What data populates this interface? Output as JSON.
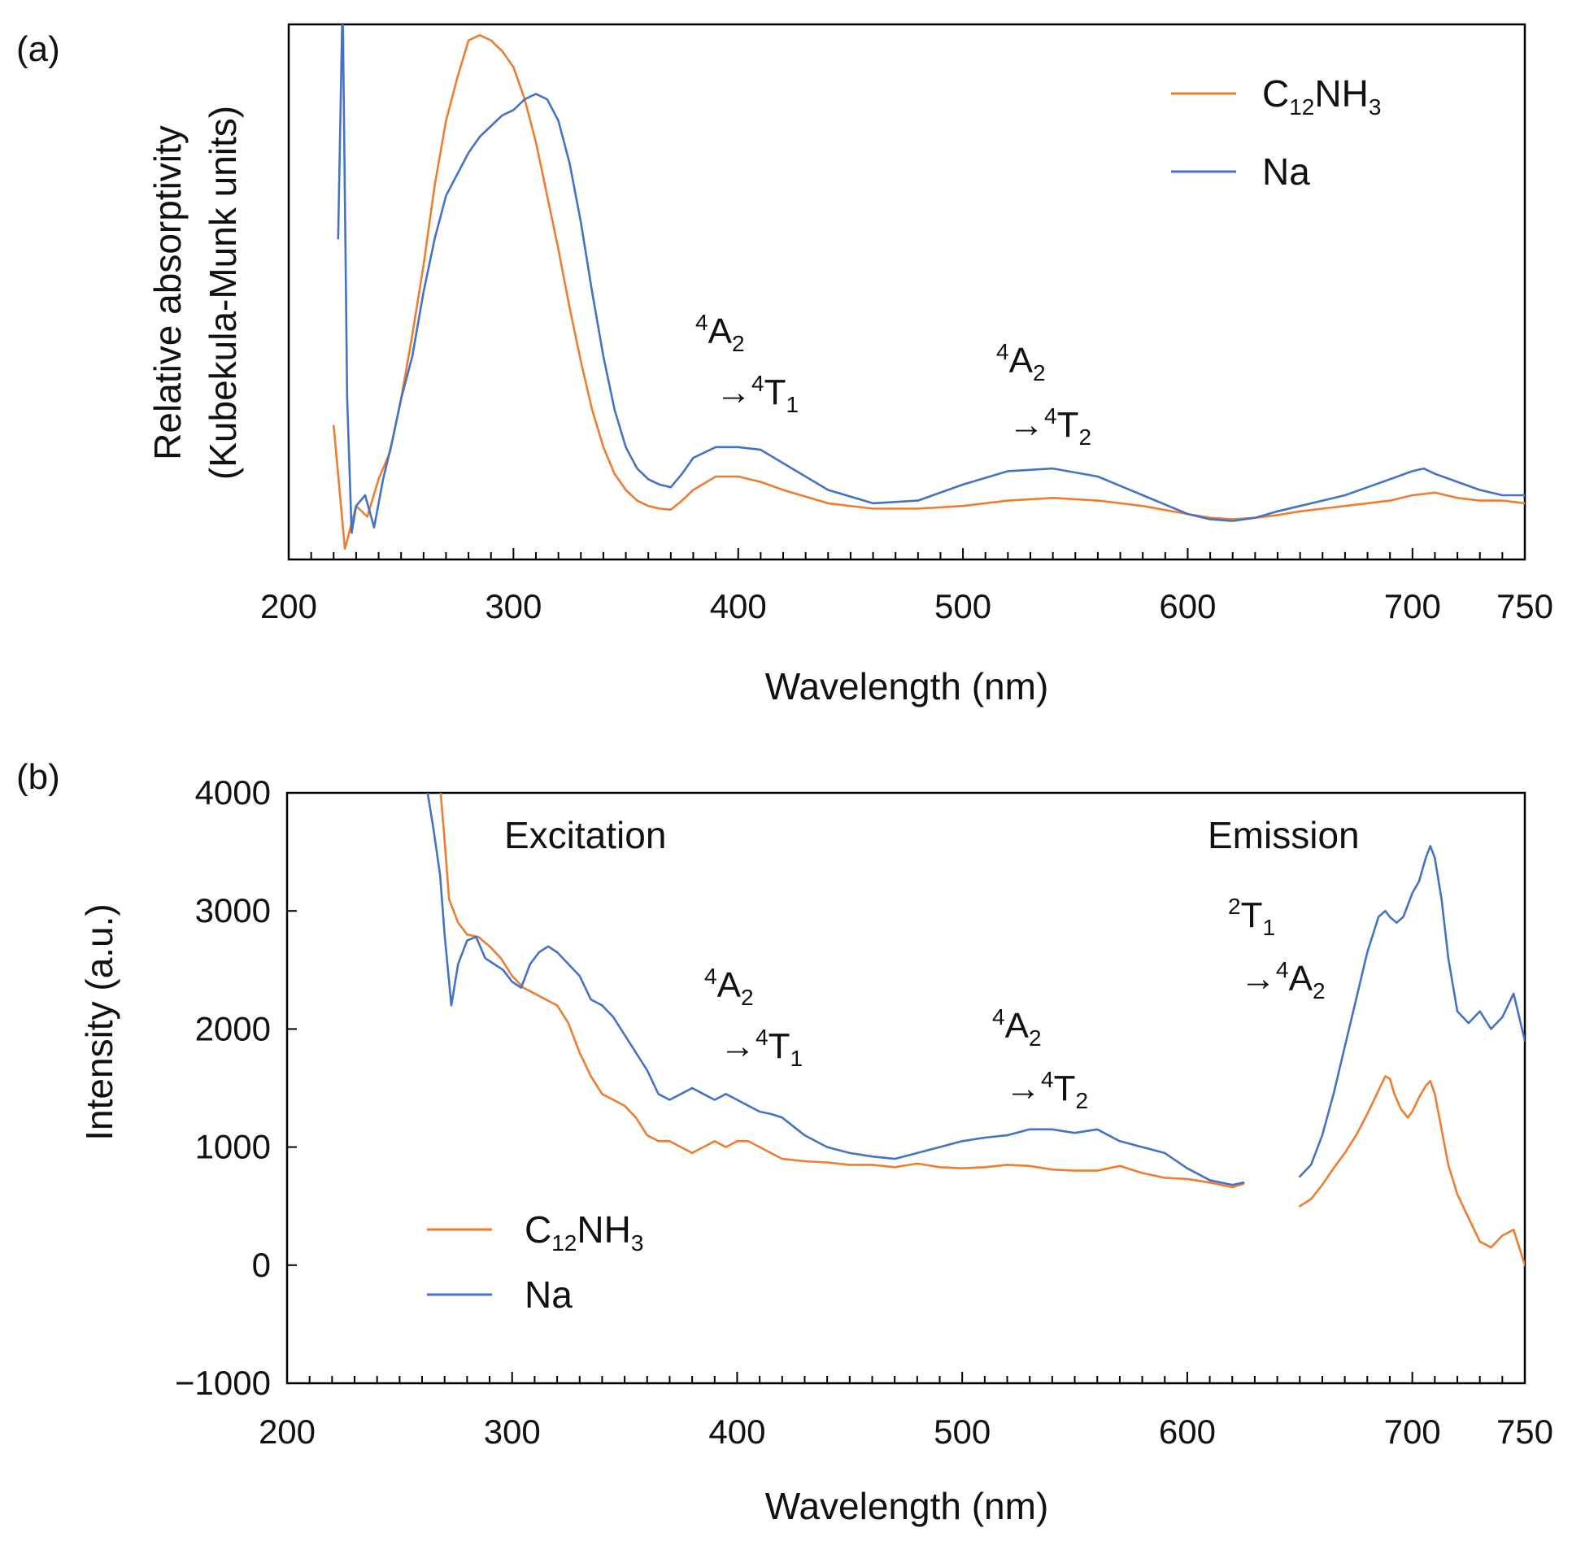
{
  "colors": {
    "c12nh3": "#ED7D31",
    "na": "#4472C4"
  },
  "chart_data": [
    {
      "panel": "(a)",
      "type": "line",
      "xlabel": "Wavelength (nm)",
      "ylabel_line1": "Relative absorptivity",
      "ylabel_line2": "(Kubekula-Munk units)",
      "xlim": [
        200,
        750
      ],
      "ylim": [
        0,
        1
      ],
      "x_ticks": [
        200,
        300,
        400,
        500,
        600,
        700,
        750
      ],
      "x_tick_labels": [
        "200",
        "300",
        "400",
        "500",
        "600",
        "700",
        "750"
      ],
      "y_tick_labels": [],
      "legend": [
        "C12NH3",
        "Na"
      ],
      "legend_position": "top-right",
      "annotations": [
        {
          "line1": "4A2",
          "line2": "→4T1",
          "x": 400
        },
        {
          "line1": "4A2",
          "line2": "→4T2",
          "x": 530
        }
      ],
      "series": [
        {
          "name": "C12NH3",
          "x": [
            220,
            225,
            230,
            235,
            240,
            245,
            250,
            255,
            260,
            265,
            270,
            275,
            280,
            285,
            290,
            295,
            300,
            305,
            310,
            315,
            320,
            325,
            330,
            335,
            340,
            345,
            350,
            355,
            360,
            365,
            370,
            375,
            380,
            390,
            400,
            410,
            420,
            440,
            460,
            480,
            500,
            520,
            540,
            560,
            580,
            600,
            610,
            620,
            630,
            640,
            650,
            660,
            670,
            680,
            690,
            700,
            710,
            720,
            730,
            740,
            750
          ],
          "y": [
            0.25,
            0.02,
            0.1,
            0.08,
            0.15,
            0.2,
            0.3,
            0.42,
            0.55,
            0.7,
            0.82,
            0.9,
            0.97,
            0.98,
            0.97,
            0.95,
            0.92,
            0.86,
            0.78,
            0.68,
            0.58,
            0.47,
            0.37,
            0.28,
            0.21,
            0.16,
            0.13,
            0.11,
            0.1,
            0.095,
            0.093,
            0.11,
            0.13,
            0.155,
            0.155,
            0.145,
            0.13,
            0.105,
            0.095,
            0.095,
            0.1,
            0.11,
            0.115,
            0.11,
            0.1,
            0.085,
            0.078,
            0.075,
            0.078,
            0.083,
            0.09,
            0.095,
            0.1,
            0.105,
            0.11,
            0.12,
            0.125,
            0.115,
            0.11,
            0.11,
            0.105
          ]
        },
        {
          "name": "Na",
          "x": [
            222,
            224,
            226,
            228,
            230,
            234,
            238,
            242,
            246,
            250,
            255,
            260,
            265,
            270,
            275,
            280,
            285,
            290,
            295,
            300,
            305,
            310,
            315,
            320,
            325,
            330,
            335,
            340,
            345,
            350,
            355,
            360,
            365,
            370,
            375,
            380,
            390,
            400,
            410,
            420,
            440,
            460,
            480,
            500,
            520,
            540,
            560,
            580,
            600,
            610,
            620,
            630,
            640,
            650,
            660,
            670,
            680,
            690,
            700,
            705,
            710,
            720,
            730,
            740,
            750
          ],
          "y": [
            0.6,
            1.05,
            0.3,
            0.05,
            0.1,
            0.12,
            0.06,
            0.15,
            0.22,
            0.3,
            0.38,
            0.5,
            0.6,
            0.68,
            0.72,
            0.76,
            0.79,
            0.81,
            0.83,
            0.84,
            0.86,
            0.87,
            0.86,
            0.82,
            0.74,
            0.63,
            0.5,
            0.38,
            0.28,
            0.21,
            0.17,
            0.15,
            0.14,
            0.135,
            0.16,
            0.19,
            0.21,
            0.21,
            0.205,
            0.18,
            0.13,
            0.105,
            0.11,
            0.14,
            0.165,
            0.17,
            0.155,
            0.12,
            0.085,
            0.075,
            0.072,
            0.078,
            0.09,
            0.1,
            0.11,
            0.12,
            0.135,
            0.15,
            0.165,
            0.17,
            0.16,
            0.145,
            0.13,
            0.12,
            0.12
          ]
        }
      ]
    },
    {
      "panel": "(b)",
      "type": "line",
      "xlabel": "Wavelength (nm)",
      "ylabel": "Intensity (a.u.)",
      "xlim": [
        200,
        750
      ],
      "ylim": [
        -1000,
        4000
      ],
      "x_ticks": [
        200,
        300,
        400,
        500,
        600,
        700,
        750
      ],
      "x_tick_labels": [
        "200",
        "300",
        "400",
        "500",
        "600",
        "700",
        "750"
      ],
      "y_ticks": [
        4000,
        3000,
        2000,
        1000,
        0,
        -1000
      ],
      "y_tick_labels": [
        "4000",
        "3000",
        "2000",
        "1000",
        "0",
        "−1000"
      ],
      "legend": [
        "C12NH3",
        "Na"
      ],
      "legend_position": "bottom-left",
      "section_labels": [
        "Excitation",
        "Emission"
      ],
      "annotations": [
        {
          "line1": "4A2",
          "line2": "→4T1",
          "x": 400
        },
        {
          "line1": "4A2",
          "line2": "→4T2",
          "x": 530
        },
        {
          "line1": "2T1",
          "line2": "→4A2",
          "x": 690
        }
      ],
      "series": [
        {
          "name": "C12NH3",
          "segments": [
            {
              "x": [
                268,
                270,
                272,
                276,
                280,
                285,
                290,
                295,
                300,
                305,
                310,
                315,
                320,
                325,
                330,
                335,
                340,
                345,
                350,
                355,
                360,
                365,
                370,
                375,
                380,
                385,
                390,
                395,
                400,
                405,
                410,
                415,
                420,
                430,
                440,
                450,
                460,
                470,
                480,
                490,
                500,
                510,
                520,
                530,
                540,
                550,
                560,
                570,
                580,
                590,
                600,
                610,
                620,
                625
              ],
              "y": [
                4050,
                3600,
                3100,
                2900,
                2800,
                2780,
                2700,
                2600,
                2450,
                2350,
                2300,
                2250,
                2200,
                2050,
                1800,
                1600,
                1450,
                1400,
                1350,
                1250,
                1100,
                1050,
                1050,
                1000,
                950,
                1000,
                1050,
                1000,
                1050,
                1050,
                1000,
                950,
                900,
                880,
                870,
                850,
                850,
                830,
                860,
                830,
                820,
                830,
                850,
                840,
                810,
                800,
                800,
                840,
                780,
                740,
                730,
                700,
                660,
                690
              ]
            },
            {
              "x": [
                650,
                655,
                660,
                665,
                670,
                675,
                680,
                685,
                688,
                690,
                692,
                695,
                698,
                700,
                703,
                706,
                708,
                710,
                713,
                716,
                720,
                725,
                730,
                735,
                740,
                745,
                750
              ],
              "y": [
                500,
                560,
                680,
                820,
                950,
                1100,
                1280,
                1480,
                1600,
                1580,
                1450,
                1320,
                1250,
                1300,
                1420,
                1520,
                1560,
                1450,
                1150,
                850,
                600,
                400,
                200,
                150,
                250,
                300,
                0
              ]
            }
          ]
        },
        {
          "name": "Na",
          "segments": [
            {
              "x": [
                262,
                265,
                268,
                270,
                273,
                276,
                280,
                284,
                288,
                292,
                296,
                300,
                304,
                308,
                312,
                316,
                320,
                325,
                330,
                335,
                340,
                345,
                350,
                355,
                360,
                365,
                370,
                375,
                380,
                385,
                390,
                395,
                400,
                405,
                410,
                415,
                420,
                430,
                440,
                450,
                460,
                470,
                480,
                490,
                500,
                510,
                520,
                530,
                540,
                550,
                560,
                570,
                580,
                590,
                600,
                610,
                620,
                625
              ],
              "y": [
                4050,
                3700,
                3300,
                2800,
                2200,
                2550,
                2750,
                2780,
                2600,
                2550,
                2500,
                2400,
                2350,
                2550,
                2650,
                2700,
                2650,
                2550,
                2450,
                2250,
                2200,
                2100,
                1950,
                1800,
                1650,
                1450,
                1400,
                1450,
                1500,
                1450,
                1400,
                1450,
                1400,
                1350,
                1300,
                1280,
                1250,
                1100,
                1000,
                950,
                920,
                900,
                950,
                1000,
                1050,
                1080,
                1100,
                1150,
                1150,
                1120,
                1150,
                1050,
                1000,
                950,
                820,
                720,
                680,
                700
              ]
            },
            {
              "x": [
                650,
                655,
                660,
                665,
                670,
                675,
                680,
                685,
                688,
                690,
                693,
                696,
                700,
                703,
                706,
                708,
                710,
                713,
                716,
                720,
                725,
                730,
                735,
                740,
                745,
                750
              ],
              "y": [
                750,
                850,
                1100,
                1450,
                1850,
                2250,
                2650,
                2950,
                3000,
                2950,
                2900,
                2950,
                3150,
                3250,
                3450,
                3550,
                3450,
                3100,
                2600,
                2150,
                2050,
                2150,
                2000,
                2100,
                2300,
                1900
              ]
            }
          ]
        }
      ]
    }
  ]
}
